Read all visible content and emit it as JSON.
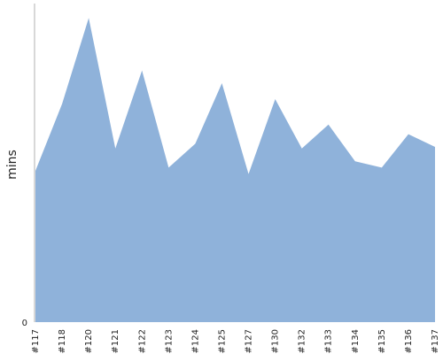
{
  "chart_data": {
    "type": "area",
    "categories": [
      "#117",
      "#118",
      "#120",
      "#121",
      "#122",
      "#123",
      "#124",
      "#125",
      "#127",
      "#130",
      "#132",
      "#133",
      "#134",
      "#135",
      "#136",
      "#137"
    ],
    "series": [
      {
        "values": [
          9.5,
          13.7,
          19.1,
          10.9,
          15.8,
          9.7,
          11.2,
          15.0,
          9.3,
          14.0,
          10.9,
          12.4,
          10.1,
          9.7,
          11.8,
          11.0
        ]
      }
    ],
    "title": "",
    "xlabel": "",
    "ylabel": "mins",
    "ylim": [
      0,
      20
    ],
    "yticks": [
      {
        "value": 0,
        "label": "0"
      }
    ],
    "grid": false,
    "legend": "none",
    "colors": {
      "area_fill": "#8fb2da",
      "axis": "#b0b0b0",
      "text": "#222222"
    }
  }
}
